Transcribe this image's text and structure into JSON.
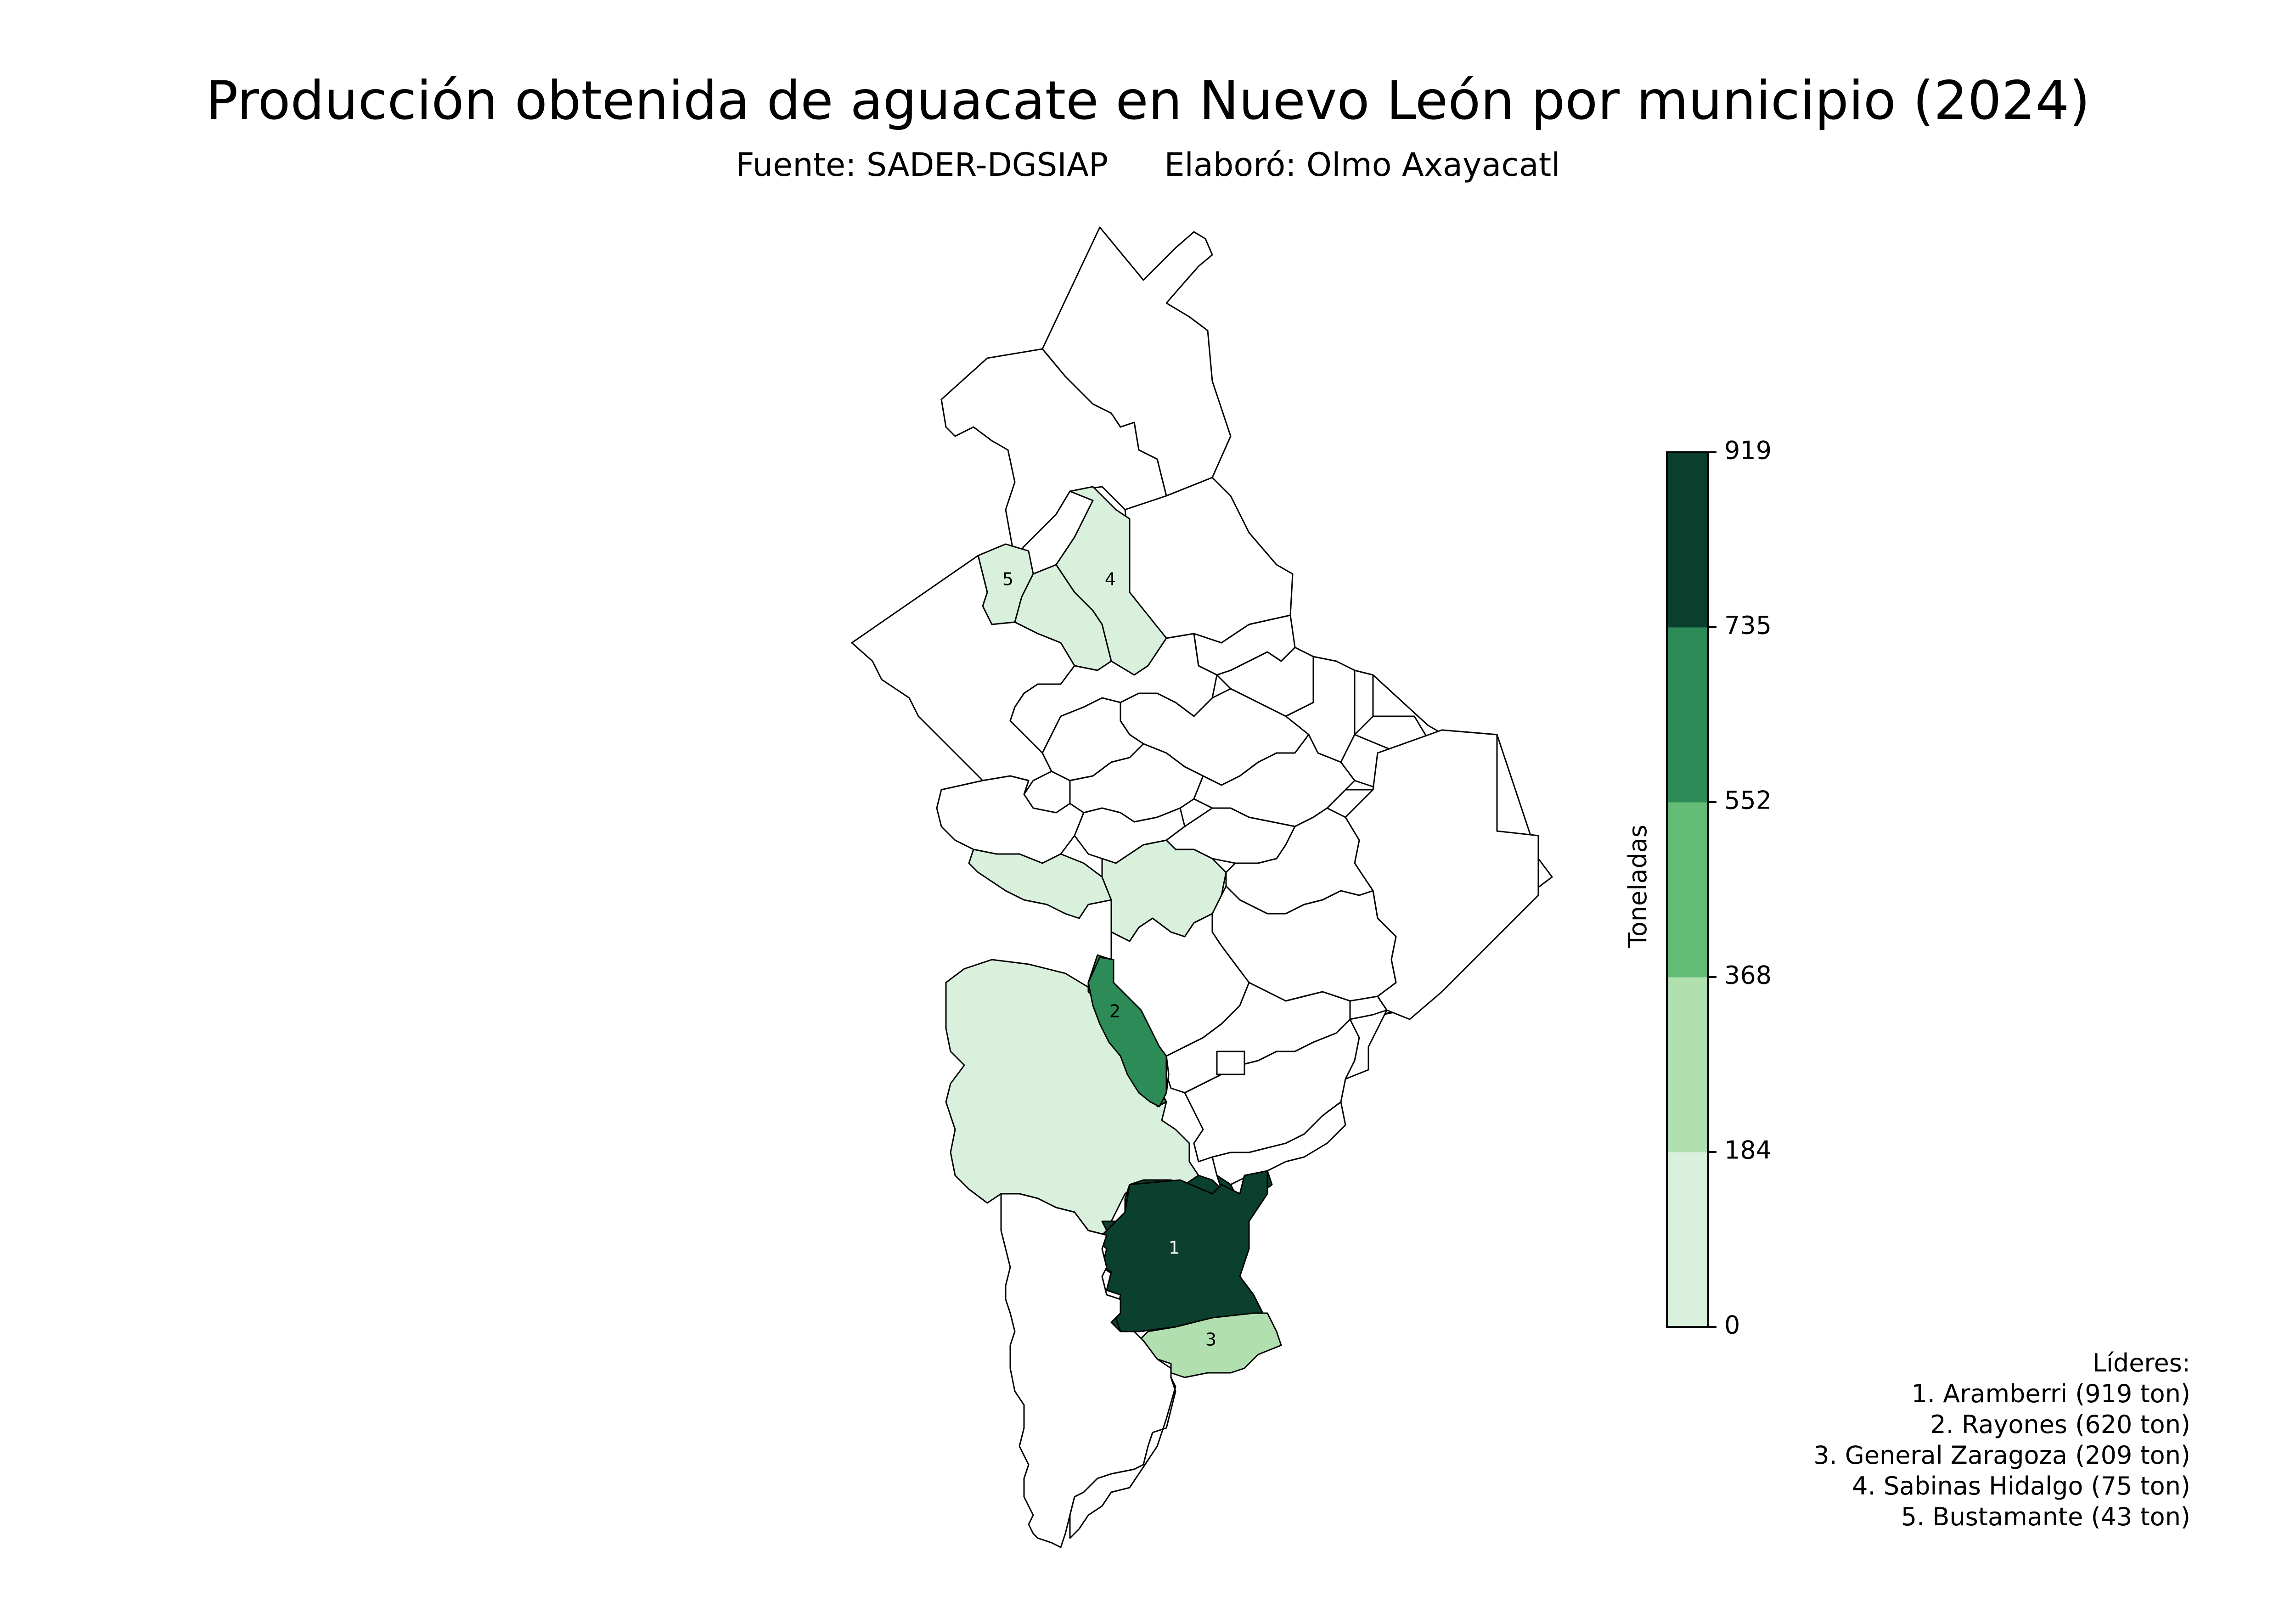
{
  "title": "Producción obtenida de aguacate en Nuevo León por municipio (2024)",
  "subtitle": {
    "source": "Fuente: SADER-DGSIAP",
    "author": "Elaboró: Olmo Axayacatl"
  },
  "colorbar": {
    "label": "Toneladas",
    "ticks": [
      "0",
      "184",
      "368",
      "552",
      "735",
      "919"
    ],
    "range": [
      0,
      919
    ],
    "colors": [
      "#d9f0dd",
      "#b1dfaf",
      "#63bd76",
      "#2c8b57",
      "#0b3f2e"
    ]
  },
  "leaders": {
    "heading": "Líderes:",
    "items": [
      "1. Aramberri (919 ton)",
      "2. Rayones (620 ton)",
      "3. General Zaragoza (209 ton)",
      "4. Sabinas Hidalgo (75 ton)",
      "5. Bustamante (43 ton)"
    ]
  },
  "map_labels": [
    {
      "rank": "1",
      "municipio": "Aramberri",
      "tons": 919
    },
    {
      "rank": "2",
      "municipio": "Rayones",
      "tons": 620
    },
    {
      "rank": "3",
      "municipio": "General Zaragoza",
      "tons": 209
    },
    {
      "rank": "4",
      "municipio": "Sabinas Hidalgo",
      "tons": 75
    },
    {
      "rank": "5",
      "municipio": "Bustamante",
      "tons": 43
    }
  ],
  "colors": {
    "class_1": "#d9f0dd",
    "class_2": "#b1dfaf",
    "class_4": "#2c8b57",
    "class_5": "#0b3f2e",
    "no_data": "#ffffff",
    "border": "#000000"
  }
}
